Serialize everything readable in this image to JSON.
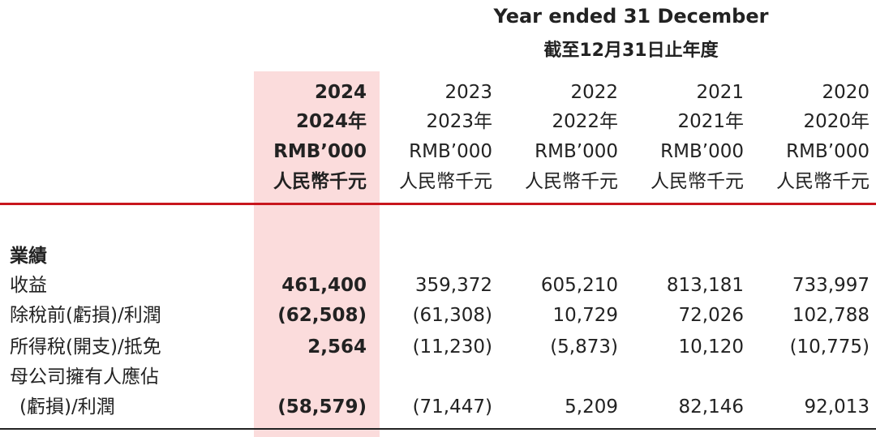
{
  "header": {
    "title_en": "Year ended 31 December",
    "title_zh": "截至12月31日止年度"
  },
  "columns": [
    {
      "year": "2024",
      "year_zh": "2024年",
      "unit": "RMB’000",
      "unit_zh": "人民幣千元"
    },
    {
      "year": "2023",
      "year_zh": "2023年",
      "unit": "RMB’000",
      "unit_zh": "人民幣千元"
    },
    {
      "year": "2022",
      "year_zh": "2022年",
      "unit": "RMB’000",
      "unit_zh": "人民幣千元"
    },
    {
      "year": "2021",
      "year_zh": "2021年",
      "unit": "RMB’000",
      "unit_zh": "人民幣千元"
    },
    {
      "year": "2020",
      "year_zh": "2020年",
      "unit": "RMB’000",
      "unit_zh": "人民幣千元"
    }
  ],
  "section_title": "業績",
  "rows": [
    {
      "label": "收益",
      "values": [
        "461,400",
        "359,372",
        "605,210",
        "813,181",
        "733,997"
      ]
    },
    {
      "label": "除稅前(虧損)/利潤",
      "values": [
        "(62,508)",
        "(61,308)",
        "10,729",
        "72,026",
        "102,788"
      ]
    },
    {
      "label": "所得稅(開支)/抵免",
      "values": [
        "2,564",
        "(11,230)",
        "(5,873)",
        "10,120",
        "(10,775)"
      ]
    },
    {
      "label": "母公司擁有人應佔",
      "values": [
        "",
        "",
        "",
        "",
        ""
      ]
    },
    {
      "label": "(虧損)/利潤",
      "values": [
        "(58,579)",
        "(71,447)",
        "5,209",
        "82,146",
        "92,013"
      ]
    }
  ],
  "colors": {
    "highlight": "#fbdcdc",
    "rule": "#c8161d",
    "text": "#222222"
  }
}
